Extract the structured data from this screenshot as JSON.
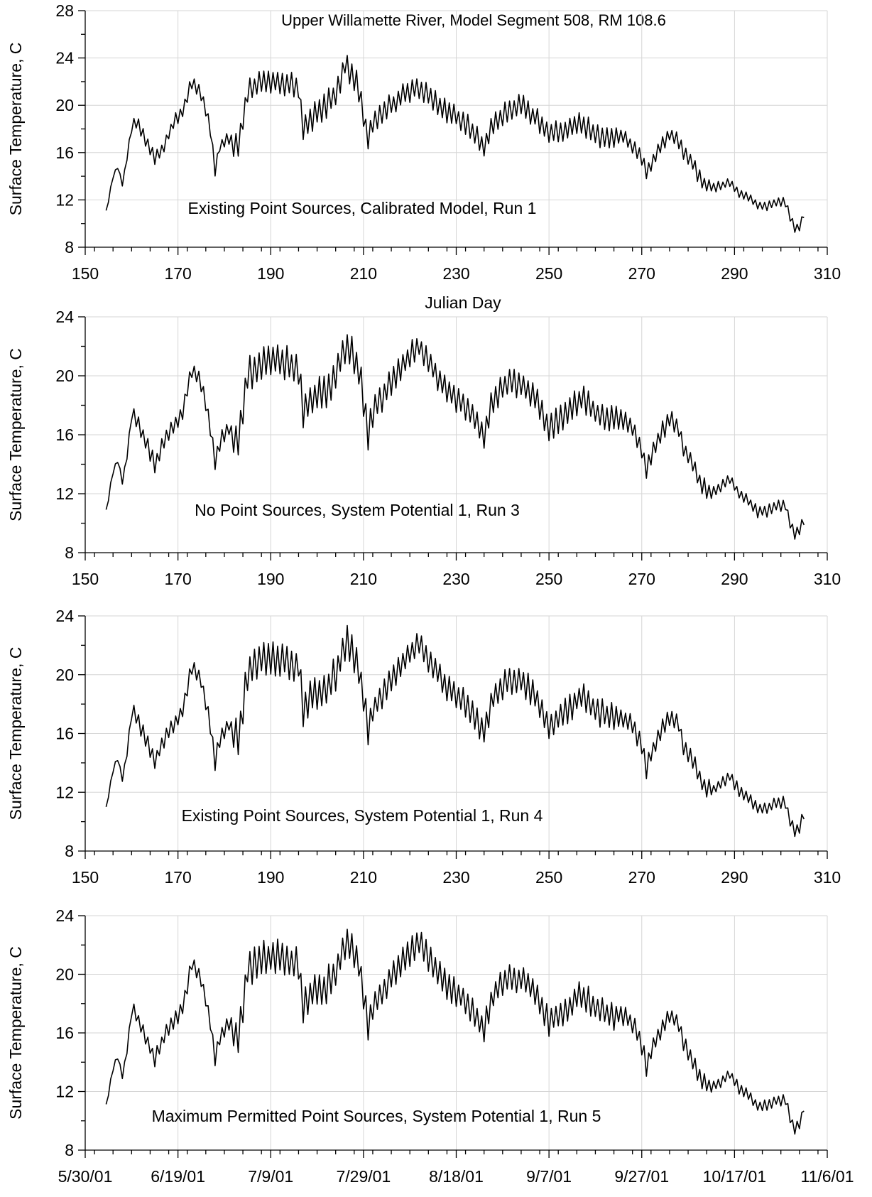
{
  "figure_title": "Upper Willamette River, Model Segment 508,  RM 108.6",
  "xlabel_top": "Julian Day",
  "ylabel": "Surface Temperature, C",
  "colors": {
    "line": "#000000",
    "grid": "#d6d6d6",
    "background": "#ffffff"
  },
  "chart_data": [
    {
      "type": "line",
      "annotation": "Existing Point Sources, Calibrated Model, Run 1",
      "xlim": [
        150,
        310
      ],
      "ylim": [
        8,
        28
      ],
      "x_ticks": [
        "150",
        "170",
        "190",
        "210",
        "230",
        "250",
        "270",
        "290",
        "310"
      ],
      "y_ticks": [
        "8",
        "12",
        "16",
        "20",
        "24",
        "28"
      ],
      "grid": true,
      "series": [
        {
          "x": [
            154.5,
            156,
            157,
            158,
            159,
            160,
            161,
            163,
            165,
            167,
            169,
            171,
            173,
            175,
            177,
            178,
            179,
            181,
            183,
            185,
            188,
            192,
            196,
            197,
            199,
            202,
            204,
            206,
            207,
            209,
            211,
            212,
            214,
            216,
            219,
            222,
            225,
            228,
            232,
            235,
            236,
            238,
            241,
            244,
            247,
            250,
            254,
            257,
            260,
            263,
            266,
            268,
            270,
            271,
            272,
            274,
            276,
            278,
            279,
            281,
            283,
            285,
            287,
            289,
            291,
            293,
            295,
            297,
            299,
            301,
            302,
            303,
            304,
            305
          ],
          "y": [
            11.0,
            14.0,
            14.8,
            13.3,
            15.5,
            18.3,
            18.7,
            17.0,
            15.5,
            16.5,
            18.5,
            19.5,
            22.0,
            21.0,
            18.0,
            14.5,
            16.5,
            17.2,
            16.5,
            21.0,
            22.0,
            22.0,
            21.5,
            18.0,
            19.0,
            20.0,
            21.0,
            23.5,
            23.0,
            21.5,
            17.0,
            18.5,
            19.5,
            20.0,
            21.0,
            21.5,
            20.5,
            19.5,
            18.5,
            17.0,
            16.5,
            18.5,
            19.5,
            20.0,
            19.0,
            17.5,
            18.0,
            18.5,
            17.5,
            17.0,
            17.5,
            16.5,
            15.5,
            14.3,
            15.0,
            16.5,
            17.5,
            17.0,
            16.0,
            15.0,
            13.5,
            13.0,
            13.2,
            13.5,
            12.5,
            12.3,
            11.5,
            11.5,
            11.8,
            11.8,
            10.5,
            9.5,
            9.8,
            10.8
          ]
        }
      ]
    },
    {
      "type": "line",
      "annotation": "No Point Sources, System Potential 1, Run 3",
      "xlim": [
        150,
        310
      ],
      "ylim": [
        8,
        24
      ],
      "x_ticks": [
        "150",
        "170",
        "190",
        "210",
        "230",
        "250",
        "270",
        "290",
        "310"
      ],
      "y_ticks": [
        "8",
        "12",
        "16",
        "20",
        "24"
      ],
      "grid": true,
      "series": [
        {
          "x": [
            154.5,
            156,
            157,
            158,
            159,
            160,
            161,
            163,
            165,
            167,
            169,
            171,
            173,
            175,
            177,
            178,
            179,
            181,
            183,
            185,
            188,
            192,
            196,
            197,
            199,
            202,
            204,
            206,
            207,
            209,
            211,
            212,
            214,
            216,
            219,
            222,
            225,
            228,
            232,
            235,
            236,
            238,
            241,
            244,
            247,
            250,
            254,
            257,
            260,
            263,
            266,
            268,
            270,
            271,
            272,
            274,
            276,
            278,
            279,
            281,
            283,
            285,
            287,
            289,
            291,
            293,
            295,
            297,
            299,
            301,
            302,
            303,
            304,
            305
          ],
          "y": [
            10.8,
            13.5,
            14.3,
            12.8,
            14.5,
            17.5,
            17.0,
            15.5,
            14.0,
            15.5,
            16.5,
            17.5,
            20.5,
            19.5,
            16.5,
            14.0,
            15.5,
            16.5,
            15.5,
            20.0,
            21.0,
            21.0,
            20.5,
            17.5,
            18.5,
            19.0,
            20.0,
            22.0,
            22.0,
            20.5,
            16.0,
            17.5,
            18.5,
            19.5,
            21.0,
            22.0,
            20.5,
            19.0,
            18.0,
            16.5,
            16.0,
            18.5,
            19.5,
            19.5,
            18.5,
            16.5,
            17.5,
            18.5,
            17.5,
            17.0,
            17.0,
            16.5,
            15.0,
            13.5,
            14.5,
            16.0,
            17.0,
            16.5,
            15.0,
            14.0,
            12.5,
            12.0,
            12.5,
            13.0,
            12.0,
            11.5,
            10.8,
            10.8,
            11.2,
            11.2,
            10.0,
            9.2,
            9.5,
            10.3
          ]
        }
      ]
    },
    {
      "type": "line",
      "annotation": "Existing Point Sources, System Potential 1, Run 4",
      "xlim": [
        150,
        310
      ],
      "ylim": [
        8,
        24
      ],
      "x_ticks": [
        "150",
        "170",
        "190",
        "210",
        "230",
        "250",
        "270",
        "290",
        "310"
      ],
      "y_ticks": [
        "8",
        "12",
        "16",
        "20",
        "24"
      ],
      "grid": true,
      "series": [
        {
          "x": [
            154.5,
            156,
            157,
            158,
            159,
            160,
            161,
            163,
            165,
            167,
            169,
            171,
            173,
            175,
            177,
            178,
            179,
            181,
            183,
            185,
            188,
            192,
            196,
            197,
            199,
            202,
            204,
            206,
            207,
            209,
            211,
            212,
            214,
            216,
            219,
            222,
            225,
            228,
            232,
            235,
            236,
            238,
            241,
            244,
            247,
            250,
            254,
            257,
            260,
            263,
            266,
            268,
            270,
            271,
            272,
            274,
            276,
            278,
            279,
            281,
            283,
            285,
            287,
            289,
            291,
            293,
            295,
            297,
            299,
            301,
            302,
            303,
            304,
            305
          ],
          "y": [
            10.9,
            13.5,
            14.3,
            12.9,
            14.6,
            17.6,
            17.1,
            15.6,
            14.1,
            15.6,
            16.6,
            17.6,
            20.6,
            19.6,
            16.6,
            14.1,
            15.6,
            16.6,
            15.6,
            20.1,
            21.1,
            21.1,
            20.6,
            17.6,
            18.6,
            19.1,
            20.1,
            22.1,
            22.1,
            20.6,
            16.1,
            17.6,
            18.6,
            19.6,
            21.1,
            22.1,
            20.6,
            19.1,
            18.1,
            16.6,
            16.1,
            18.6,
            19.6,
            19.6,
            18.6,
            16.6,
            17.6,
            18.6,
            17.6,
            17.1,
            17.1,
            16.6,
            15.1,
            13.6,
            14.6,
            16.1,
            17.1,
            16.6,
            15.1,
            14.1,
            12.6,
            12.1,
            12.6,
            13.1,
            12.1,
            11.6,
            10.9,
            10.9,
            11.3,
            11.3,
            10.1,
            9.3,
            9.6,
            10.6
          ]
        }
      ]
    },
    {
      "type": "line",
      "annotation": "Maximum Permitted Point Sources, System Potential 1, Run 5",
      "xlim": [
        "5/30/01",
        "11/6/01"
      ],
      "ylim": [
        8,
        24
      ],
      "x_ticks": [
        "5/30/01",
        "6/19/01",
        "7/9/01",
        "7/29/01",
        "8/18/01",
        "9/7/01",
        "9/27/01",
        "10/17/01",
        "11/6/01"
      ],
      "y_ticks": [
        "8",
        "12",
        "16",
        "20",
        "24"
      ],
      "grid": true,
      "series": [
        {
          "x": [
            154.5,
            156,
            157,
            158,
            159,
            160,
            161,
            163,
            165,
            167,
            169,
            171,
            173,
            175,
            177,
            178,
            179,
            181,
            183,
            185,
            188,
            192,
            196,
            197,
            199,
            202,
            204,
            206,
            207,
            209,
            211,
            212,
            214,
            216,
            219,
            222,
            225,
            228,
            232,
            235,
            236,
            238,
            241,
            244,
            247,
            250,
            254,
            257,
            260,
            263,
            266,
            268,
            270,
            271,
            272,
            274,
            276,
            278,
            279,
            281,
            283,
            285,
            287,
            289,
            291,
            293,
            295,
            297,
            299,
            301,
            302,
            303,
            304,
            305
          ],
          "y": [
            11.0,
            13.6,
            14.4,
            13.0,
            14.7,
            17.7,
            17.2,
            15.7,
            14.2,
            15.7,
            16.7,
            17.7,
            20.7,
            19.7,
            16.7,
            14.2,
            15.7,
            16.7,
            15.7,
            20.2,
            21.2,
            21.2,
            20.7,
            17.7,
            18.7,
            19.2,
            20.2,
            22.2,
            22.2,
            20.7,
            16.2,
            17.7,
            18.7,
            19.7,
            21.2,
            22.2,
            20.7,
            19.2,
            18.2,
            16.7,
            16.2,
            18.7,
            19.7,
            19.7,
            18.7,
            16.7,
            17.7,
            18.7,
            17.7,
            17.2,
            17.2,
            16.7,
            15.2,
            13.7,
            14.7,
            16.2,
            17.2,
            16.7,
            15.2,
            14.2,
            12.7,
            12.2,
            12.7,
            13.2,
            12.2,
            11.7,
            11.0,
            11.0,
            11.4,
            11.4,
            10.2,
            9.4,
            9.7,
            10.9
          ]
        }
      ]
    }
  ]
}
